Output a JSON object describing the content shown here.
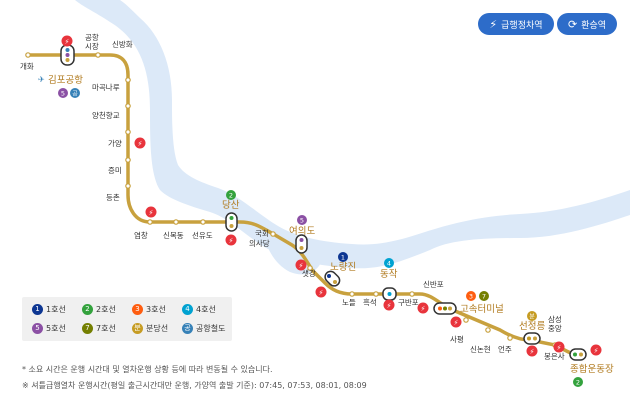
{
  "buttons": {
    "express": "급행정차역",
    "transfer": "환승역"
  },
  "stations": {
    "gaehwa": "개화",
    "gimpo_airport": "김포공항",
    "airport_market": "공항\n시장",
    "sinbanghwa": "신방화",
    "magongnaru": "마곡나루",
    "yangcheon_hyanggyo": "양천향교",
    "gayang": "가양",
    "jeungmi": "증미",
    "deungchon": "등촌",
    "yeomchang": "염창",
    "sinmokdong": "신목동",
    "seonyudo": "선유도",
    "dangsan": "당산",
    "national_assembly": "국회\n의사당",
    "yeouido": "여의도",
    "saetgang": "샛강",
    "noryangjin": "노량진",
    "nodeul": "노들",
    "heukseok": "흑석",
    "dongjak": "동작",
    "gubanpo": "구반포",
    "sinbanpo": "신반포",
    "express_bus_terminal": "고속터미널",
    "sapyeong": "사평",
    "sinnonhyeon": "신논현",
    "eonju": "언주",
    "seonjeongneung": "선정릉",
    "samseong_jungang": "삼성\n중앙",
    "bongeunsa": "봉은사",
    "sports_complex": "종합운동장"
  },
  "legend": [
    {
      "badge": "1",
      "label": "1호선",
      "color": "#0d3692"
    },
    {
      "badge": "2",
      "label": "2호선",
      "color": "#33a23d"
    },
    {
      "badge": "3",
      "label": "3호선",
      "color": "#fe5d10"
    },
    {
      "badge": "4",
      "label": "4호선",
      "color": "#00a2d1"
    },
    {
      "badge": "5",
      "label": "5호선",
      "color": "#8b50a4"
    },
    {
      "badge": "7",
      "label": "7호선",
      "color": "#747f00"
    },
    {
      "badge": "분",
      "label": "분당선",
      "color": "#c69c23"
    },
    {
      "badge": "공",
      "label": "공항철도",
      "color": "#3681b7"
    }
  ],
  "notes": {
    "note1": "* 소요 시간은 운행 시간대 및 열차운행 상황 등에 따라 변동될 수 있습니다.",
    "note2": "※ 셔틀급행열차 운행시간(평일 출근시간대만 운행, 가양역 출발 기준): 07:45, 07:53, 08:01, 08:09"
  },
  "colors": {
    "line9": "#c8a13e",
    "river": "#dce9f8",
    "express_marker": "#e8343c",
    "button": "#2d6cc9"
  }
}
